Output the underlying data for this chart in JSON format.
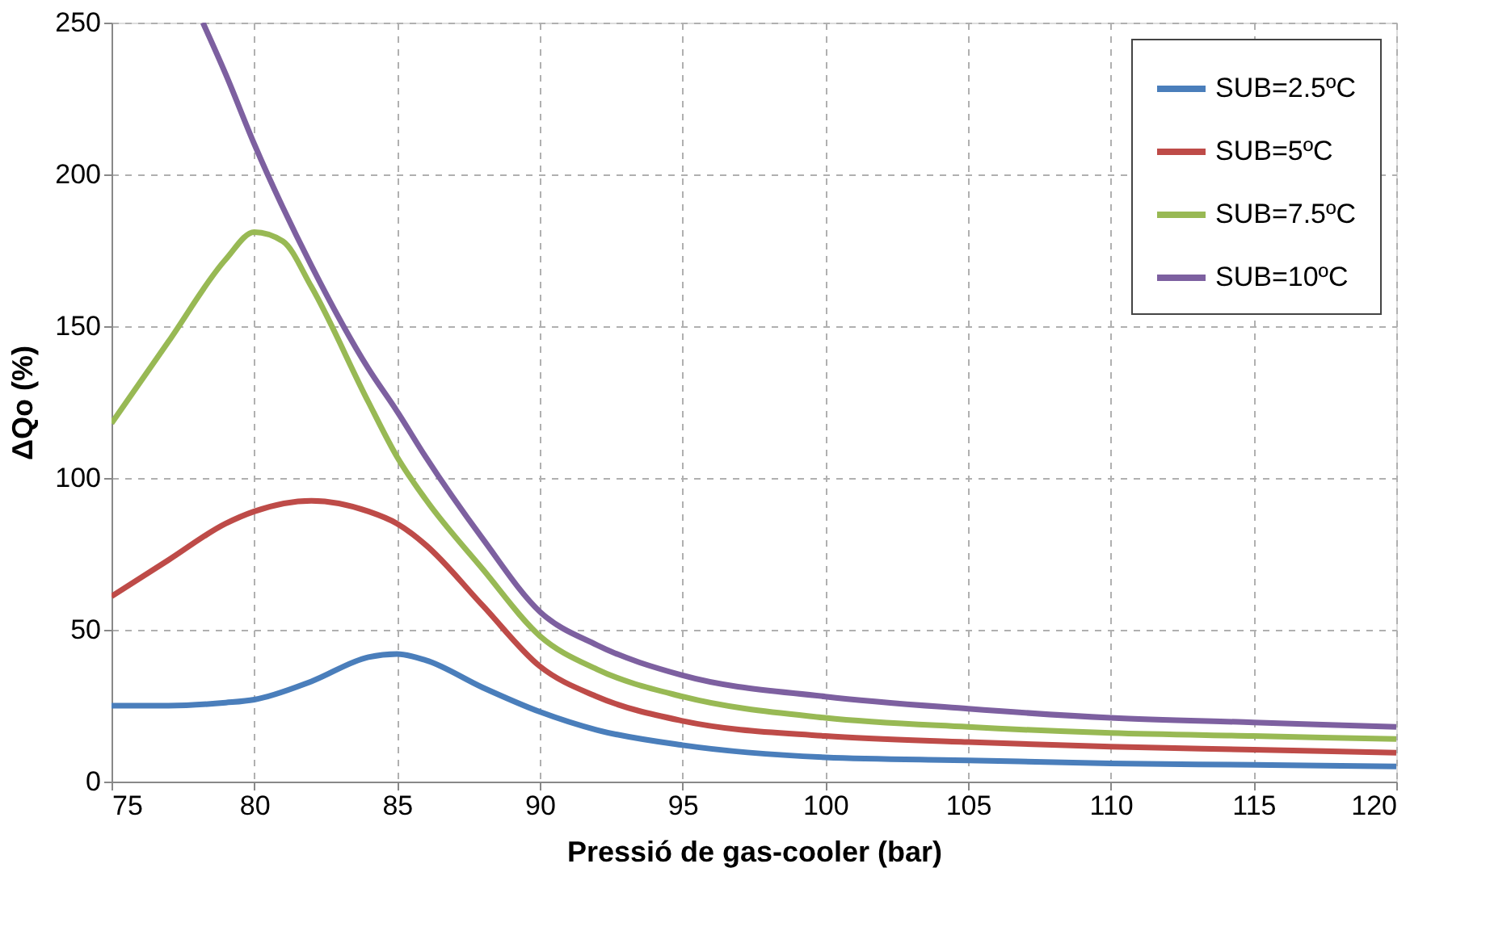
{
  "chart_data": {
    "type": "line",
    "xlabel": "Pressió de gas-cooler (bar)",
    "ylabel": "ΔQo (%)",
    "xlim": [
      75,
      120
    ],
    "xticks": [
      75,
      80,
      85,
      90,
      95,
      100,
      105,
      110,
      115,
      120
    ],
    "ylim": [
      0,
      250
    ],
    "yticks": [
      0,
      50,
      100,
      150,
      200,
      250
    ],
    "grid": true,
    "legend": "top right",
    "marker": "none",
    "line_style": "solid",
    "series": [
      {
        "name": "SUB=2.5ºC",
        "color": "#4a7ebb",
        "x": [
          75,
          77,
          79,
          80,
          82,
          84,
          85,
          86,
          88,
          90,
          92,
          95,
          100,
          105,
          110,
          115,
          120
        ],
        "values": [
          25,
          25,
          26,
          27,
          33,
          41,
          42,
          40,
          31,
          23,
          17,
          12,
          8,
          7,
          6,
          5.5,
          5
        ]
      },
      {
        "name": "SUB=5ºC",
        "color": "#be4b48",
        "x": [
          75,
          77,
          79,
          80,
          82,
          84,
          85,
          86,
          88,
          90,
          92,
          95,
          100,
          105,
          110,
          115,
          120
        ],
        "values": [
          61,
          73,
          85,
          89,
          92.5,
          89,
          85,
          78,
          58,
          38,
          28,
          20,
          15,
          13,
          11.5,
          10.5,
          9.5
        ]
      },
      {
        "name": "SUB=7.5ºC",
        "color": "#98b954",
        "x": [
          75,
          77,
          79,
          80,
          81,
          82,
          84,
          85,
          86,
          88,
          90,
          92,
          95,
          100,
          105,
          110,
          115,
          120
        ],
        "values": [
          118,
          145,
          172,
          181,
          178,
          163,
          125,
          107,
          93,
          70,
          48,
          37,
          28,
          21,
          18,
          16,
          15,
          14
        ]
      },
      {
        "name": "SUB=10ºC",
        "color": "#7d60a0",
        "x": [
          78.2,
          79,
          80,
          82,
          84,
          85,
          86,
          88,
          90,
          92,
          95,
          100,
          105,
          110,
          115,
          120
        ],
        "values": [
          250,
          233,
          210,
          170,
          136,
          122,
          107,
          80,
          56,
          45,
          35,
          28,
          24,
          21,
          19.5,
          18
        ]
      }
    ]
  }
}
